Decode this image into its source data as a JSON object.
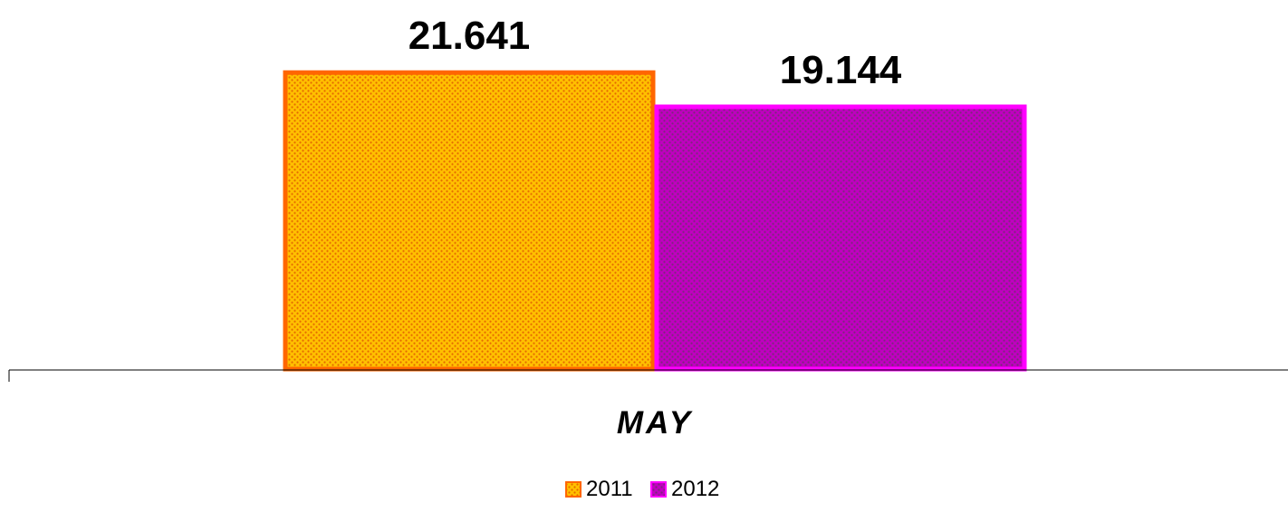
{
  "chart_data": {
    "type": "bar",
    "categories": [
      "MAY"
    ],
    "series": [
      {
        "name": "2011",
        "values": [
          21641
        ],
        "label": "21.641",
        "color": "#FFC000",
        "edge_color": "#FF6600",
        "pattern_dot": "#E56A00"
      },
      {
        "name": "2012",
        "values": [
          19144
        ],
        "label": "19.144",
        "color": "#C000C0",
        "edge_color": "#FF00FF",
        "pattern_dot": "#7A2A7A"
      }
    ],
    "ylim": [
      0,
      24000
    ],
    "grid": false,
    "legend": "bottom-center",
    "title": "",
    "xlabel": "",
    "ylabel": ""
  }
}
